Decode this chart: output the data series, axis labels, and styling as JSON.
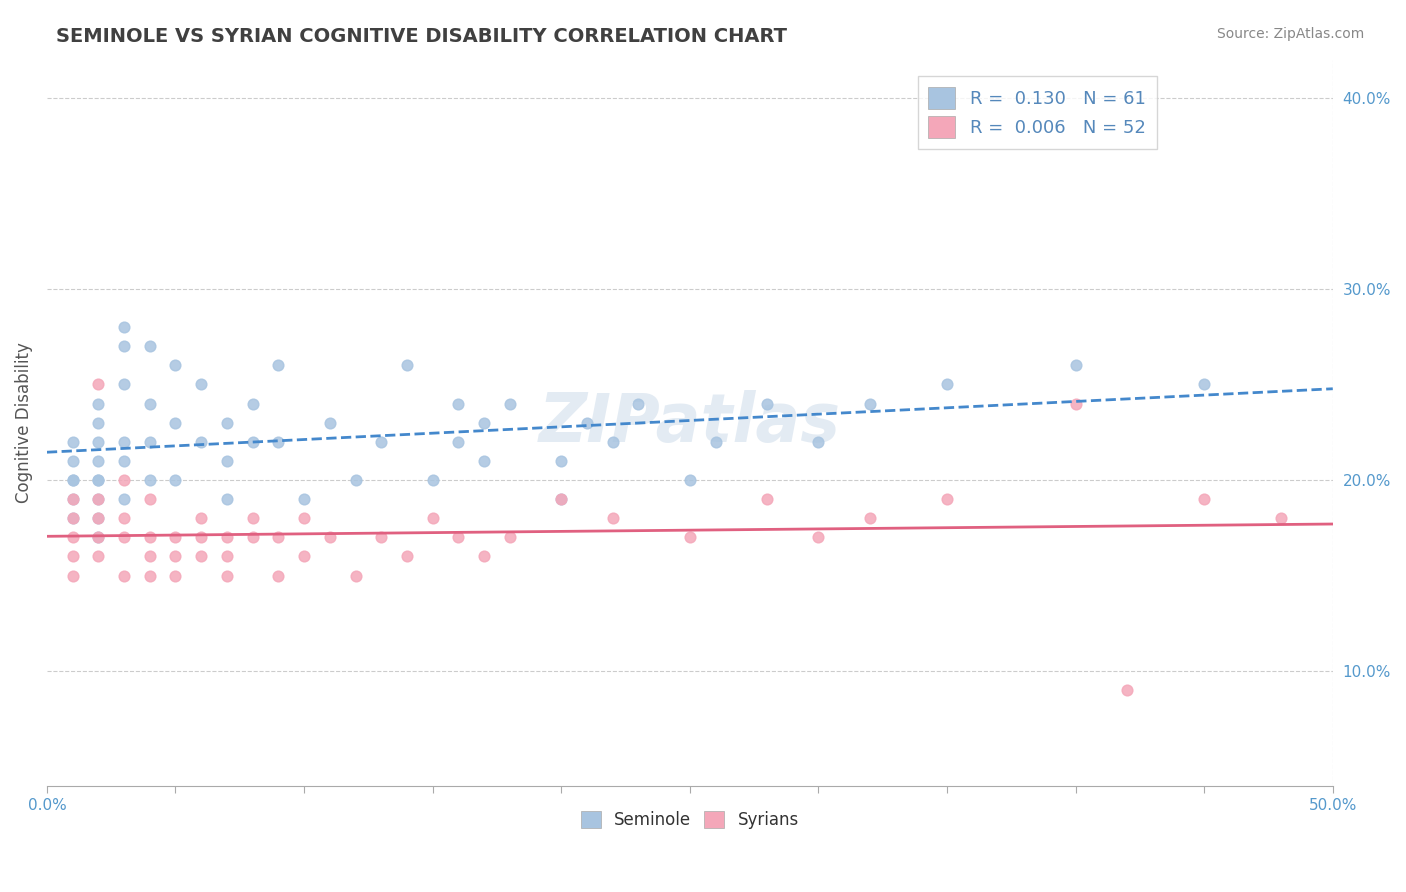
{
  "title": "SEMINOLE VS SYRIAN COGNITIVE DISABILITY CORRELATION CHART",
  "source": "Source: ZipAtlas.com",
  "xlabel": "",
  "ylabel": "Cognitive Disability",
  "xlim": [
    0.0,
    0.5
  ],
  "ylim": [
    0.04,
    0.42
  ],
  "xticks": [
    0.0,
    0.05,
    0.1,
    0.15,
    0.2,
    0.25,
    0.3,
    0.35,
    0.4,
    0.45,
    0.5
  ],
  "yticks": [
    0.1,
    0.2,
    0.3,
    0.4
  ],
  "ytick_labels": [
    "10.0%",
    "20.0%",
    "30.0%",
    "40.0%"
  ],
  "xtick_labels": [
    "0.0%",
    "",
    "",
    "",
    "",
    "",
    "",
    "",
    "",
    "",
    "50.0%"
  ],
  "seminole_R": 0.13,
  "seminole_N": 61,
  "syrian_R": 0.006,
  "syrian_N": 52,
  "seminole_color": "#a8c4e0",
  "syrian_color": "#f4a7b9",
  "seminole_line_color": "#4488cc",
  "syrian_line_color": "#e06080",
  "watermark": "ZIPatlas",
  "seminole_x": [
    0.01,
    0.01,
    0.01,
    0.01,
    0.01,
    0.01,
    0.02,
    0.02,
    0.02,
    0.02,
    0.02,
    0.02,
    0.02,
    0.02,
    0.02,
    0.03,
    0.03,
    0.03,
    0.03,
    0.03,
    0.03,
    0.04,
    0.04,
    0.04,
    0.04,
    0.05,
    0.05,
    0.05,
    0.06,
    0.06,
    0.07,
    0.07,
    0.07,
    0.08,
    0.08,
    0.09,
    0.09,
    0.1,
    0.11,
    0.12,
    0.13,
    0.14,
    0.15,
    0.16,
    0.16,
    0.17,
    0.17,
    0.18,
    0.2,
    0.2,
    0.21,
    0.22,
    0.23,
    0.25,
    0.26,
    0.28,
    0.3,
    0.32,
    0.35,
    0.4,
    0.45
  ],
  "seminole_y": [
    0.2,
    0.19,
    0.21,
    0.2,
    0.22,
    0.18,
    0.2,
    0.22,
    0.24,
    0.19,
    0.21,
    0.23,
    0.2,
    0.18,
    0.17,
    0.22,
    0.28,
    0.25,
    0.27,
    0.21,
    0.19,
    0.24,
    0.27,
    0.22,
    0.2,
    0.26,
    0.23,
    0.2,
    0.22,
    0.25,
    0.23,
    0.21,
    0.19,
    0.24,
    0.22,
    0.26,
    0.22,
    0.19,
    0.23,
    0.2,
    0.22,
    0.26,
    0.2,
    0.22,
    0.24,
    0.23,
    0.21,
    0.24,
    0.19,
    0.21,
    0.23,
    0.22,
    0.24,
    0.2,
    0.22,
    0.24,
    0.22,
    0.24,
    0.25,
    0.26,
    0.25
  ],
  "syrian_x": [
    0.01,
    0.01,
    0.01,
    0.01,
    0.01,
    0.02,
    0.02,
    0.02,
    0.02,
    0.02,
    0.03,
    0.03,
    0.03,
    0.03,
    0.04,
    0.04,
    0.04,
    0.04,
    0.05,
    0.05,
    0.05,
    0.06,
    0.06,
    0.06,
    0.07,
    0.07,
    0.07,
    0.08,
    0.08,
    0.09,
    0.09,
    0.1,
    0.1,
    0.11,
    0.12,
    0.13,
    0.14,
    0.15,
    0.16,
    0.17,
    0.18,
    0.2,
    0.22,
    0.25,
    0.28,
    0.3,
    0.32,
    0.35,
    0.4,
    0.42,
    0.45,
    0.48
  ],
  "syrian_y": [
    0.17,
    0.16,
    0.18,
    0.15,
    0.19,
    0.25,
    0.17,
    0.18,
    0.16,
    0.19,
    0.2,
    0.15,
    0.17,
    0.18,
    0.19,
    0.17,
    0.15,
    0.16,
    0.15,
    0.16,
    0.17,
    0.16,
    0.17,
    0.18,
    0.15,
    0.16,
    0.17,
    0.18,
    0.17,
    0.15,
    0.17,
    0.18,
    0.16,
    0.17,
    0.15,
    0.17,
    0.16,
    0.18,
    0.17,
    0.16,
    0.17,
    0.19,
    0.18,
    0.17,
    0.19,
    0.17,
    0.18,
    0.19,
    0.24,
    0.09,
    0.19,
    0.18
  ],
  "background_color": "#ffffff",
  "grid_color": "#cccccc"
}
